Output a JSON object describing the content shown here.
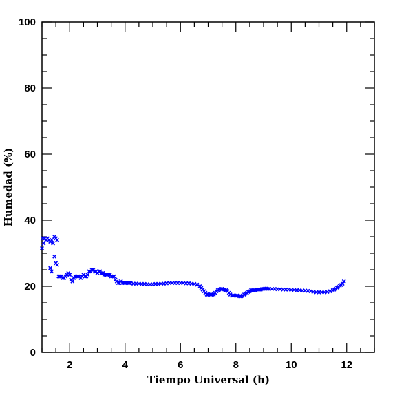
{
  "chart_data": {
    "type": "scatter",
    "title": "",
    "xlabel": "Tiempo Universal (h)",
    "ylabel": "Humedad (%)",
    "xlim": [
      1,
      13
    ],
    "ylim": [
      0,
      100
    ],
    "x_ticks": [
      2,
      4,
      6,
      8,
      10,
      12
    ],
    "x_tick_labels": [
      "2",
      "4",
      "6",
      "8",
      "10",
      "12"
    ],
    "y_ticks": [
      0,
      20,
      40,
      60,
      80,
      100
    ],
    "y_tick_labels": [
      "0",
      "20",
      "40",
      "60",
      "80",
      "100"
    ],
    "grid": false,
    "marker": "x",
    "marker_color": "#0000ff",
    "series": [
      {
        "x": [
          1.0,
          1.03,
          1.06,
          1.1,
          1.15,
          1.2,
          1.25,
          1.3,
          1.35,
          1.4,
          1.45,
          1.5,
          1.55,
          1.6,
          1.3,
          1.35,
          1.45,
          1.5,
          1.55,
          1.65,
          1.7,
          1.75,
          1.8,
          1.85,
          1.9,
          1.95,
          2.0,
          2.05,
          2.1,
          2.15,
          2.2,
          2.25,
          2.3,
          2.35,
          2.4,
          2.45,
          2.5,
          2.55,
          2.6,
          2.65,
          2.7,
          2.75,
          2.8,
          2.85,
          2.9,
          2.95,
          3.0,
          3.05,
          3.1,
          3.15,
          3.2,
          3.25,
          3.3,
          3.35,
          3.4,
          3.45,
          3.5,
          3.55,
          3.6,
          3.65,
          3.7,
          3.75,
          3.8,
          3.85,
          3.9,
          3.95,
          4.0,
          4.05,
          4.1,
          4.15,
          4.2,
          4.3,
          4.4,
          4.5,
          4.6,
          4.7,
          4.8,
          4.9,
          5.0,
          5.1,
          5.2,
          5.3,
          5.4,
          5.5,
          5.6,
          5.7,
          5.8,
          5.9,
          6.0,
          6.1,
          6.2,
          6.3,
          6.4,
          6.5,
          6.6,
          6.7,
          6.75,
          6.8,
          6.85,
          6.9,
          6.95,
          7.0,
          7.05,
          7.1,
          7.15,
          7.2,
          7.25,
          7.3,
          7.35,
          7.4,
          7.45,
          7.5,
          7.55,
          7.6,
          7.65,
          7.7,
          7.75,
          7.8,
          7.85,
          7.9,
          7.95,
          8.0,
          8.05,
          8.1,
          8.15,
          8.2,
          8.25,
          8.3,
          8.35,
          8.4,
          8.45,
          8.5,
          8.55,
          8.6,
          8.65,
          8.7,
          8.75,
          8.8,
          8.85,
          8.9,
          8.95,
          9.0,
          9.05,
          9.1,
          9.15,
          9.2,
          9.3,
          9.4,
          9.5,
          9.6,
          9.7,
          9.8,
          9.9,
          10.0,
          10.1,
          10.2,
          10.3,
          10.4,
          10.5,
          10.6,
          10.7,
          10.8,
          10.9,
          11.0,
          11.1,
          11.2,
          11.3,
          11.4,
          11.5,
          11.55,
          11.6,
          11.65,
          11.7,
          11.75,
          11.8,
          11.85,
          11.9
        ],
        "y": [
          31.5,
          34.5,
          33.0,
          34.5,
          34.0,
          34.5,
          34.0,
          33.5,
          34.0,
          33.0,
          35.0,
          34.5,
          34.0,
          23.0,
          25.5,
          24.5,
          29.0,
          27.0,
          26.5,
          23.0,
          23.0,
          22.5,
          22.5,
          23.0,
          23.5,
          24.0,
          23.5,
          22.0,
          21.5,
          22.5,
          23.0,
          23.0,
          23.0,
          23.0,
          22.5,
          23.0,
          23.5,
          23.0,
          23.0,
          23.5,
          24.5,
          24.5,
          25.0,
          25.0,
          24.5,
          24.5,
          24.0,
          24.5,
          24.5,
          24.0,
          24.0,
          23.5,
          23.5,
          23.5,
          23.5,
          23.5,
          23.0,
          23.0,
          23.0,
          22.0,
          21.5,
          21.0,
          21.0,
          21.5,
          21.0,
          21.0,
          21.0,
          21.0,
          21.0,
          21.0,
          21.0,
          20.8,
          20.8,
          20.8,
          20.7,
          20.7,
          20.6,
          20.6,
          20.6,
          20.7,
          20.7,
          20.8,
          20.8,
          20.9,
          21.0,
          21.0,
          21.0,
          21.0,
          21.0,
          21.0,
          20.9,
          20.9,
          20.8,
          20.7,
          20.5,
          20.0,
          19.5,
          19.0,
          18.5,
          18.0,
          17.5,
          17.5,
          17.5,
          17.5,
          17.5,
          17.5,
          18.0,
          18.5,
          18.8,
          19.0,
          19.2,
          19.2,
          19.0,
          19.0,
          18.8,
          18.5,
          18.0,
          17.5,
          17.2,
          17.2,
          17.2,
          17.2,
          17.2,
          17.0,
          17.0,
          17.0,
          17.2,
          17.5,
          17.8,
          18.0,
          18.3,
          18.5,
          18.8,
          18.8,
          18.8,
          18.8,
          19.0,
          19.0,
          19.0,
          19.0,
          19.2,
          19.2,
          19.3,
          19.3,
          19.2,
          19.2,
          19.2,
          19.2,
          19.1,
          19.1,
          19.0,
          19.0,
          19.0,
          18.9,
          18.9,
          18.8,
          18.8,
          18.7,
          18.7,
          18.6,
          18.5,
          18.3,
          18.2,
          18.2,
          18.2,
          18.2,
          18.3,
          18.5,
          18.8,
          19.0,
          19.3,
          19.6,
          19.9,
          20.2,
          20.4,
          20.8,
          21.5
        ]
      }
    ]
  }
}
